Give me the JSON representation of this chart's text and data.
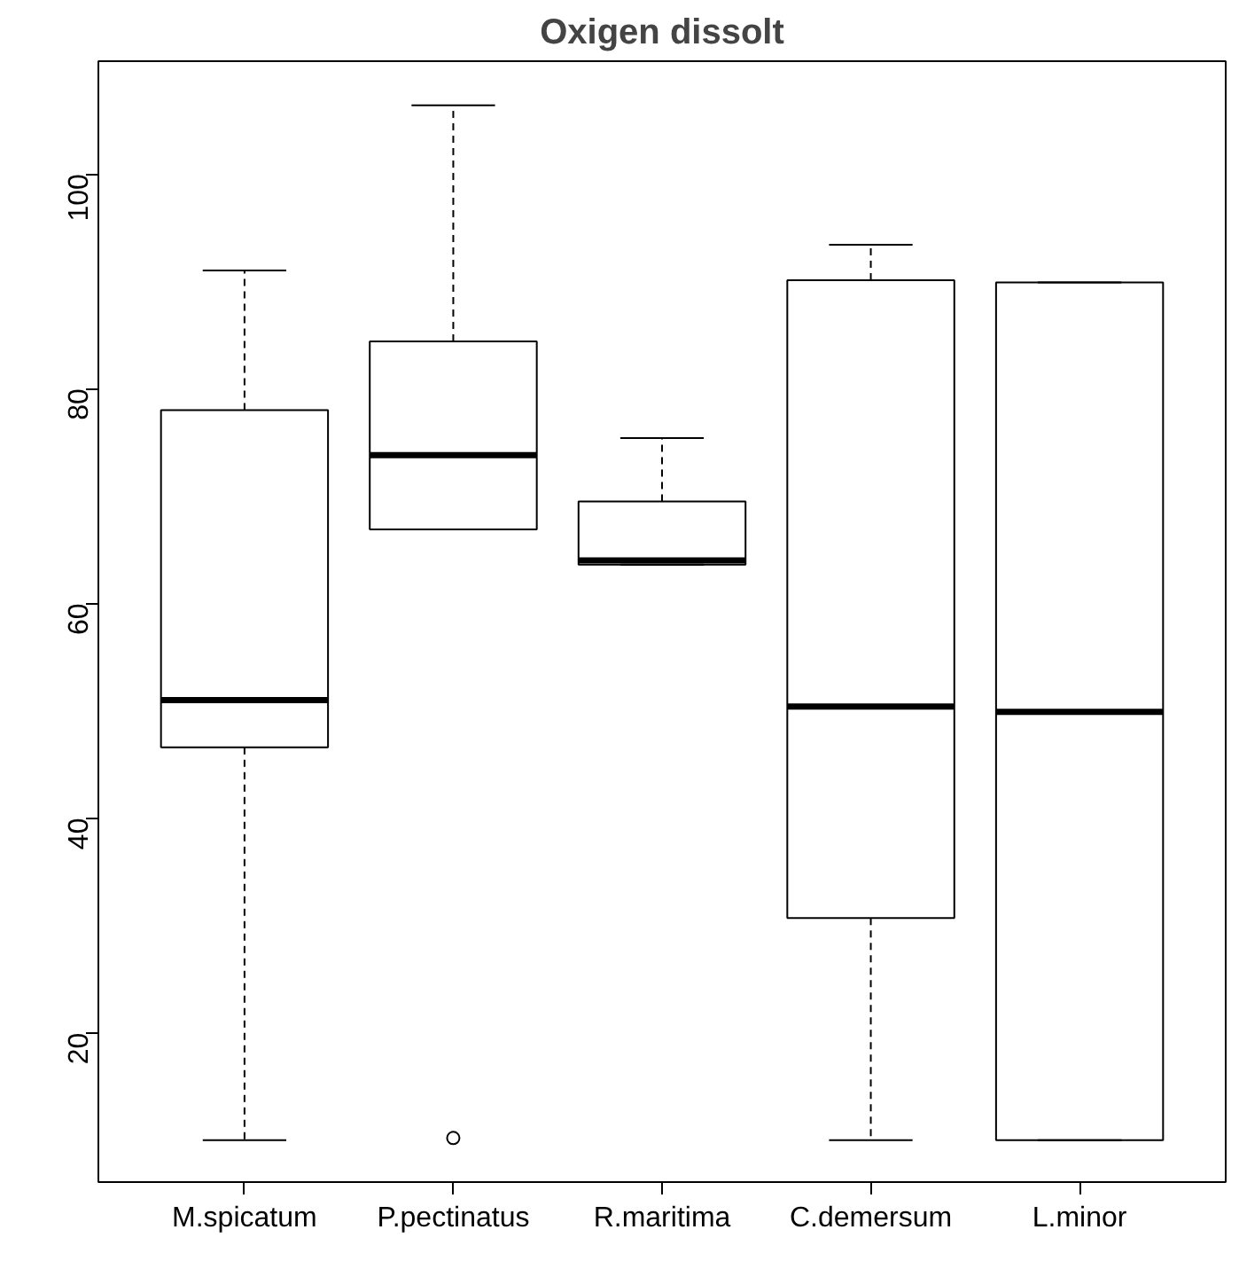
{
  "chart_data": {
    "type": "box",
    "title": "Oxigen dissolt",
    "categories": [
      "M.spicatum",
      "P.pectinatus",
      "R.maritima",
      "C.demersum",
      "L.minor"
    ],
    "boxes": [
      {
        "low": 10,
        "q1": 46.6,
        "median": 51.0,
        "q3": 78.0,
        "high": 91.0
      },
      {
        "low": 66.9,
        "q1": 66.9,
        "median": 73.8,
        "q3": 84.4,
        "high": 106.4,
        "outliers": [
          10.2
        ]
      },
      {
        "low": 63.6,
        "q1": 63.6,
        "median": 64.0,
        "q3": 69.5,
        "high": 75.4
      },
      {
        "low": 10,
        "q1": 30.7,
        "median": 50.4,
        "q3": 90.1,
        "high": 93.4
      },
      {
        "low": 10,
        "q1": 10,
        "median": 49.9,
        "q3": 89.9,
        "high": 89.9
      }
    ],
    "ylim": [
      6.1,
      110.5
    ],
    "yticks": [
      20,
      40,
      60,
      80,
      100
    ]
  }
}
